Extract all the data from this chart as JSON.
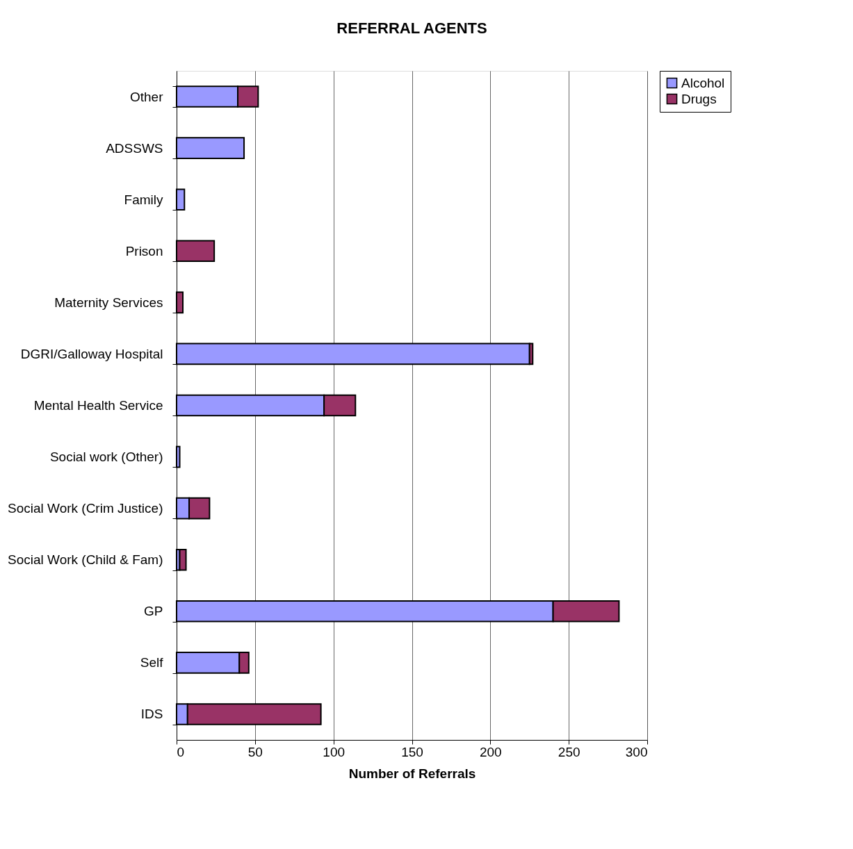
{
  "chart_data": {
    "type": "bar",
    "orientation": "horizontal",
    "stacked": true,
    "title": "REFERRAL AGENTS",
    "xlabel": "Number of Referrals",
    "categories": [
      "Other",
      "ADSSWS",
      "Family",
      "Prison",
      "Maternity Services",
      "DGRI/Galloway Hospital",
      "Mental Health Service",
      "Social work (Other)",
      "Social Work (Crim Justice)",
      "Social Work (Child & Fam)",
      "GP",
      "Self",
      "IDS"
    ],
    "series": [
      {
        "name": "Alcohol",
        "color": "#9999ff",
        "values": [
          39,
          43,
          5,
          null,
          null,
          225,
          94,
          2,
          8,
          2,
          240,
          40,
          7
        ]
      },
      {
        "name": "Drugs",
        "color": "#993366",
        "values": [
          13,
          null,
          null,
          24,
          4,
          2,
          20,
          null,
          13,
          4,
          42,
          6,
          85
        ]
      }
    ],
    "xlim": [
      0,
      300
    ],
    "xticks": [
      0,
      50,
      100,
      150,
      200,
      250,
      300
    ],
    "grid": "x",
    "legend": "right"
  }
}
